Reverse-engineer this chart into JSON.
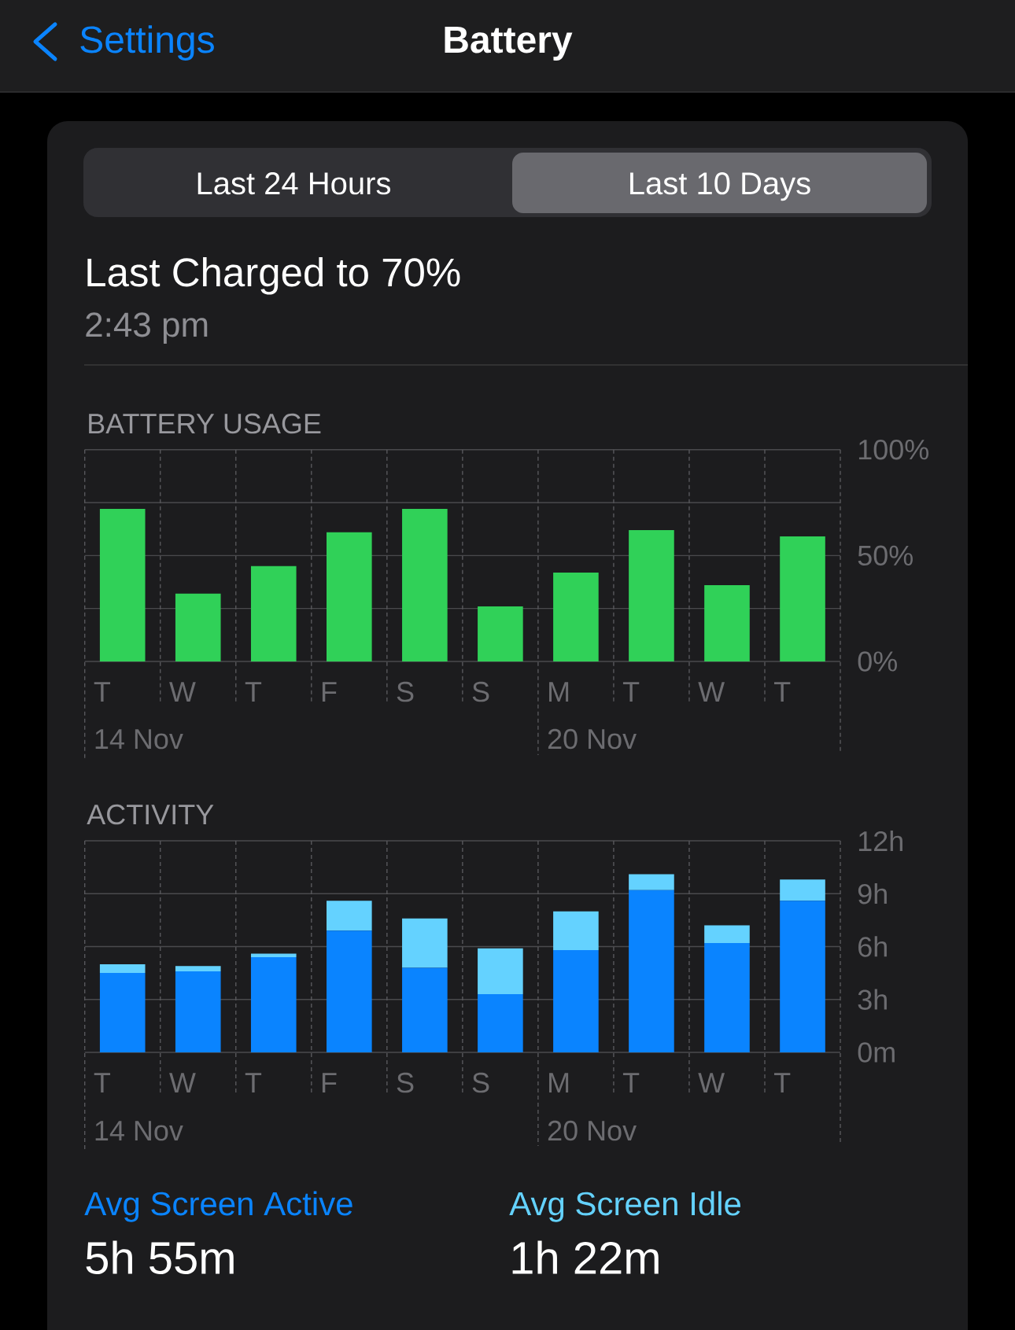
{
  "chart_data": [
    {
      "type": "bar",
      "title": "BATTERY USAGE",
      "categories": [
        "T",
        "W",
        "T",
        "F",
        "S",
        "S",
        "M",
        "T",
        "W",
        "T"
      ],
      "values": [
        72,
        32,
        45,
        61,
        72,
        26,
        42,
        62,
        36,
        59
      ],
      "color": "#30d158",
      "ylim": [
        0,
        100
      ],
      "yticks": [
        {
          "value": 0,
          "label": "0%"
        },
        {
          "value": 25,
          "label": null
        },
        {
          "value": 50,
          "label": "50%"
        },
        {
          "value": 75,
          "label": null
        },
        {
          "value": 100,
          "label": "100%"
        }
      ],
      "grid": true,
      "annotations": [
        "Settings",
        "Battery",
        "Last 24 Hours",
        "Last 10 Days",
        "Last Charged to 70%",
        "2:43 pm",
        "14 Nov",
        "20 Nov"
      ]
    },
    {
      "type": "bar",
      "title": "ACTIVITY",
      "categories": [
        "T",
        "W",
        "T",
        "F",
        "S",
        "S",
        "M",
        "T",
        "W",
        "T"
      ],
      "stacked": true,
      "series": [
        {
          "name": "Avg Screen Active",
          "color": "#0a84ff",
          "values": [
            4.5,
            4.6,
            5.4,
            6.9,
            4.8,
            3.3,
            5.8,
            9.2,
            6.2,
            8.6
          ]
        },
        {
          "name": "Avg Screen Idle",
          "color": "#64d2ff",
          "values": [
            0.5,
            0.3,
            0.2,
            1.7,
            2.8,
            2.6,
            2.2,
            0.9,
            1.0,
            1.2
          ]
        }
      ],
      "ylim": [
        0,
        12
      ],
      "yticks": [
        {
          "value": 0,
          "label": "0m"
        },
        {
          "value": 3,
          "label": "3h"
        },
        {
          "value": 6,
          "label": "6h"
        },
        {
          "value": 9,
          "label": "9h"
        },
        {
          "value": 12,
          "label": "12h"
        }
      ],
      "grid": true,
      "legend": "bottom",
      "annotations": [
        "14 Nov",
        "20 Nov",
        "5h 55m",
        "1h 22m"
      ]
    }
  ]
}
